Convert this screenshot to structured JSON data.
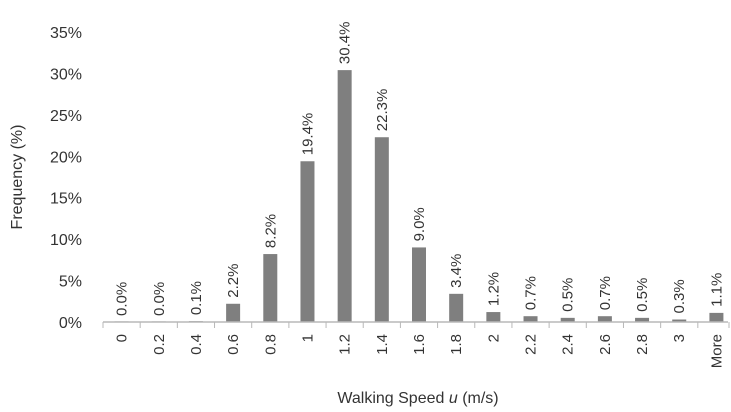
{
  "chart_data": {
    "type": "bar",
    "categories": [
      "0",
      "0.2",
      "0.4",
      "0.6",
      "0.8",
      "1",
      "1.2",
      "1.4",
      "1.6",
      "1.8",
      "2",
      "2.2",
      "2.4",
      "2.6",
      "2.8",
      "3",
      "More"
    ],
    "values": [
      0.0,
      0.0,
      0.1,
      2.2,
      8.2,
      19.4,
      30.4,
      22.3,
      9.0,
      3.4,
      1.2,
      0.7,
      0.5,
      0.7,
      0.5,
      0.3,
      1.1
    ],
    "data_labels": [
      "0.0%",
      "0.0%",
      "0.1%",
      "2.2%",
      "8.2%",
      "19.4%",
      "30.4%",
      "22.3%",
      "9.0%",
      "3.4%",
      "1.2%",
      "0.7%",
      "0.5%",
      "0.7%",
      "0.5%",
      "0.3%",
      "1.1%"
    ],
    "y_ticks": [
      "0%",
      "5%",
      "10%",
      "15%",
      "20%",
      "25%",
      "30%",
      "35%"
    ],
    "ylim": [
      0,
      35
    ],
    "xlabel_prefix": "Walking Speed ",
    "xlabel_var": "u",
    "xlabel_suffix": " (m/s)",
    "ylabel": "Frequency (%)",
    "title": "",
    "grid": false,
    "bar_color": "#7f7f7f",
    "axis_color": "#b8b8b8"
  }
}
